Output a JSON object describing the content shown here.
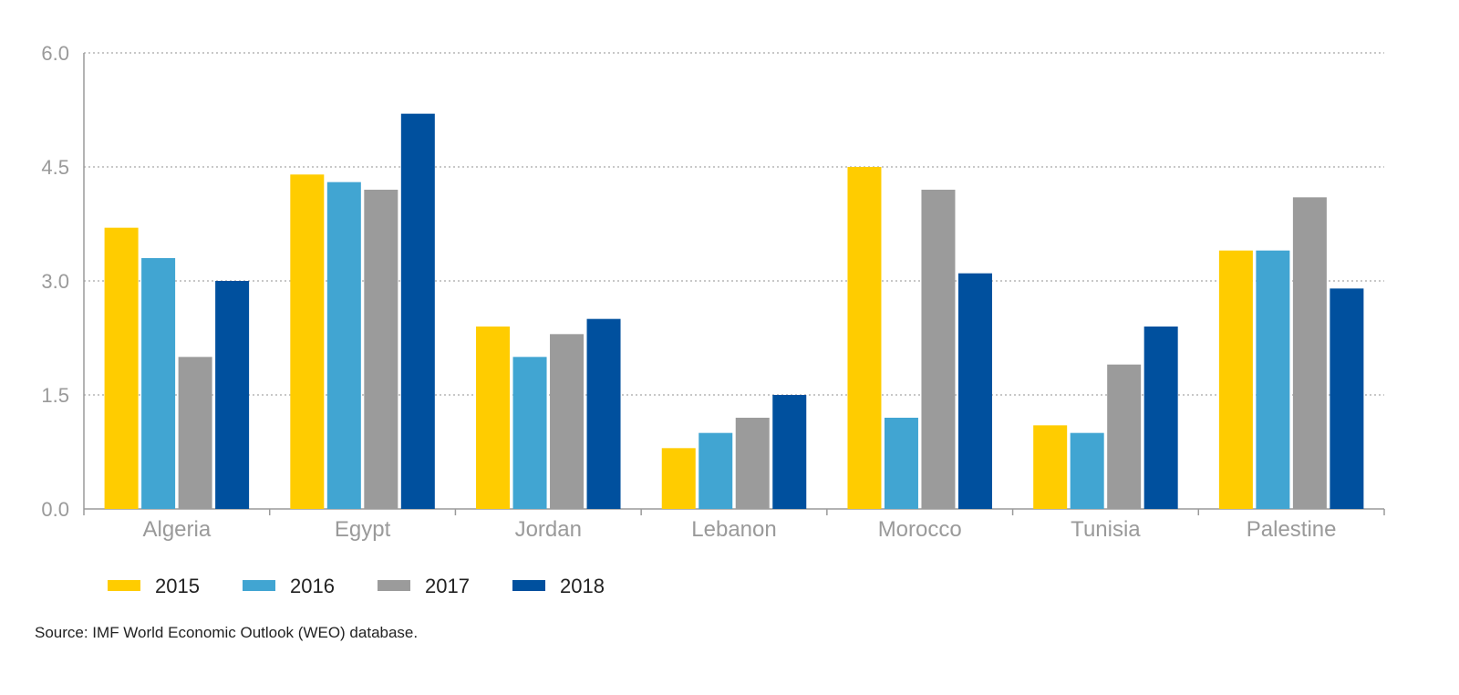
{
  "chart_data": {
    "type": "bar",
    "title": "",
    "xlabel": "",
    "ylabel": "",
    "categories": [
      "Algeria",
      "Egypt",
      "Jordan",
      "Lebanon",
      "Morocco",
      "Tunisia",
      "Palestine"
    ],
    "series": [
      {
        "name": "2015",
        "color": "#FFCC00",
        "values": [
          3.7,
          4.4,
          2.4,
          0.8,
          4.5,
          1.1,
          3.4
        ]
      },
      {
        "name": "2016",
        "color": "#41A5D2",
        "values": [
          3.3,
          4.3,
          2.0,
          1.0,
          1.2,
          1.0,
          3.4
        ]
      },
      {
        "name": "2017",
        "color": "#9B9B9B",
        "values": [
          2.0,
          4.2,
          2.3,
          1.2,
          4.2,
          1.9,
          4.1
        ]
      },
      {
        "name": "2018",
        "color": "#00509E",
        "values": [
          3.0,
          5.2,
          2.5,
          1.5,
          3.1,
          2.4,
          2.9
        ]
      }
    ],
    "ylim": [
      0,
      6
    ],
    "yticks": [
      "0.0",
      "1.5",
      "3.0",
      "4.5",
      "6.0"
    ],
    "grid": true,
    "legend_position": "bottom-left"
  },
  "source_note": "Source: IMF World Economic Outlook (WEO) database."
}
